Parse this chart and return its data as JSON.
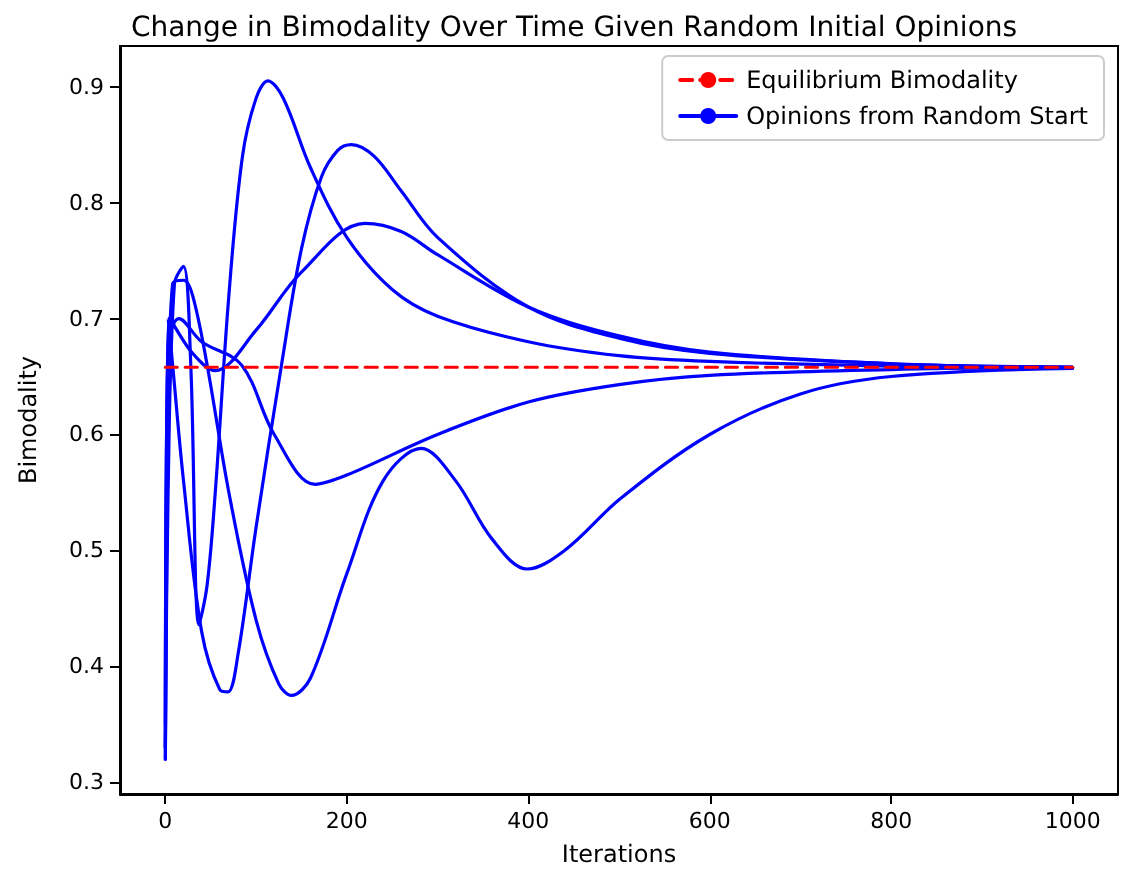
{
  "chart_data": {
    "type": "line",
    "title": "Change in Bimodality Over Time Given Random Initial Opinions",
    "xlabel": "Iterations",
    "ylabel": "Bimodality",
    "xlim": [
      -50,
      1050
    ],
    "xticks": [
      0,
      200,
      400,
      600,
      800,
      1000
    ],
    "ylim": [
      0.29,
      0.935
    ],
    "yticks": [
      0.3,
      0.4,
      0.5,
      0.6,
      0.7,
      0.8,
      0.9
    ],
    "grid": false,
    "legend": "top right",
    "marker": "none",
    "series": [
      {
        "name": "Equilibrium Bimodality",
        "color": "#ff0000",
        "line_style": "dashed",
        "x": [
          0,
          1000
        ],
        "values": [
          0.658,
          0.658
        ]
      },
      {
        "name": "Opinions from Random Start",
        "color": "#0000ff",
        "line_style": "solid",
        "x": [
          0,
          3,
          10,
          20,
          28,
          37,
          46,
          55,
          70,
          85,
          100,
          113,
          130,
          160,
          200,
          250,
          300,
          400,
          500,
          600,
          800,
          1000
        ],
        "values": [
          0.33,
          0.55,
          0.73,
          0.745,
          0.66,
          0.436,
          0.47,
          0.55,
          0.72,
          0.84,
          0.89,
          0.905,
          0.89,
          0.83,
          0.77,
          0.725,
          0.702,
          0.68,
          0.668,
          0.663,
          0.659,
          0.658
        ]
      },
      {
        "color": "#0000ff",
        "line_style": "solid",
        "x": [
          0,
          3,
          8,
          20,
          40,
          60,
          69,
          80,
          100,
          128,
          150,
          172,
          190,
          205,
          230,
          260,
          300,
          400,
          500,
          600,
          800,
          1000
        ],
        "values": [
          0.32,
          0.7,
          0.66,
          0.56,
          0.43,
          0.38,
          0.378,
          0.41,
          0.52,
          0.66,
          0.76,
          0.822,
          0.845,
          0.85,
          0.84,
          0.81,
          0.77,
          0.71,
          0.683,
          0.67,
          0.661,
          0.658
        ]
      },
      {
        "color": "#0000ff",
        "line_style": "solid",
        "x": [
          0,
          3,
          8,
          20,
          30,
          46,
          70,
          100,
          125,
          139,
          160,
          200,
          240,
          282,
          320,
          360,
          399,
          440,
          502,
          600,
          700,
          800,
          1000
        ],
        "values": [
          0.32,
          0.6,
          0.73,
          0.733,
          0.72,
          0.66,
          0.55,
          0.44,
          0.385,
          0.375,
          0.39,
          0.48,
          0.56,
          0.588,
          0.56,
          0.51,
          0.484,
          0.5,
          0.545,
          0.6,
          0.635,
          0.65,
          0.657
        ]
      },
      {
        "color": "#0000ff",
        "line_style": "solid",
        "x": [
          0,
          4,
          15,
          40,
          84,
          120,
          165,
          200,
          300,
          400,
          500,
          600,
          800,
          1000
        ],
        "values": [
          0.33,
          0.68,
          0.7,
          0.68,
          0.66,
          0.6,
          0.557,
          0.565,
          0.6,
          0.628,
          0.643,
          0.651,
          0.656,
          0.658
        ]
      },
      {
        "color": "#0000ff",
        "line_style": "solid",
        "x": [
          0,
          5,
          30,
          55,
          100,
          150,
          220,
          260,
          300,
          400,
          500,
          600,
          800,
          1000
        ],
        "values": [
          0.35,
          0.7,
          0.67,
          0.655,
          0.69,
          0.74,
          0.782,
          0.775,
          0.755,
          0.71,
          0.685,
          0.671,
          0.661,
          0.658
        ]
      }
    ]
  }
}
